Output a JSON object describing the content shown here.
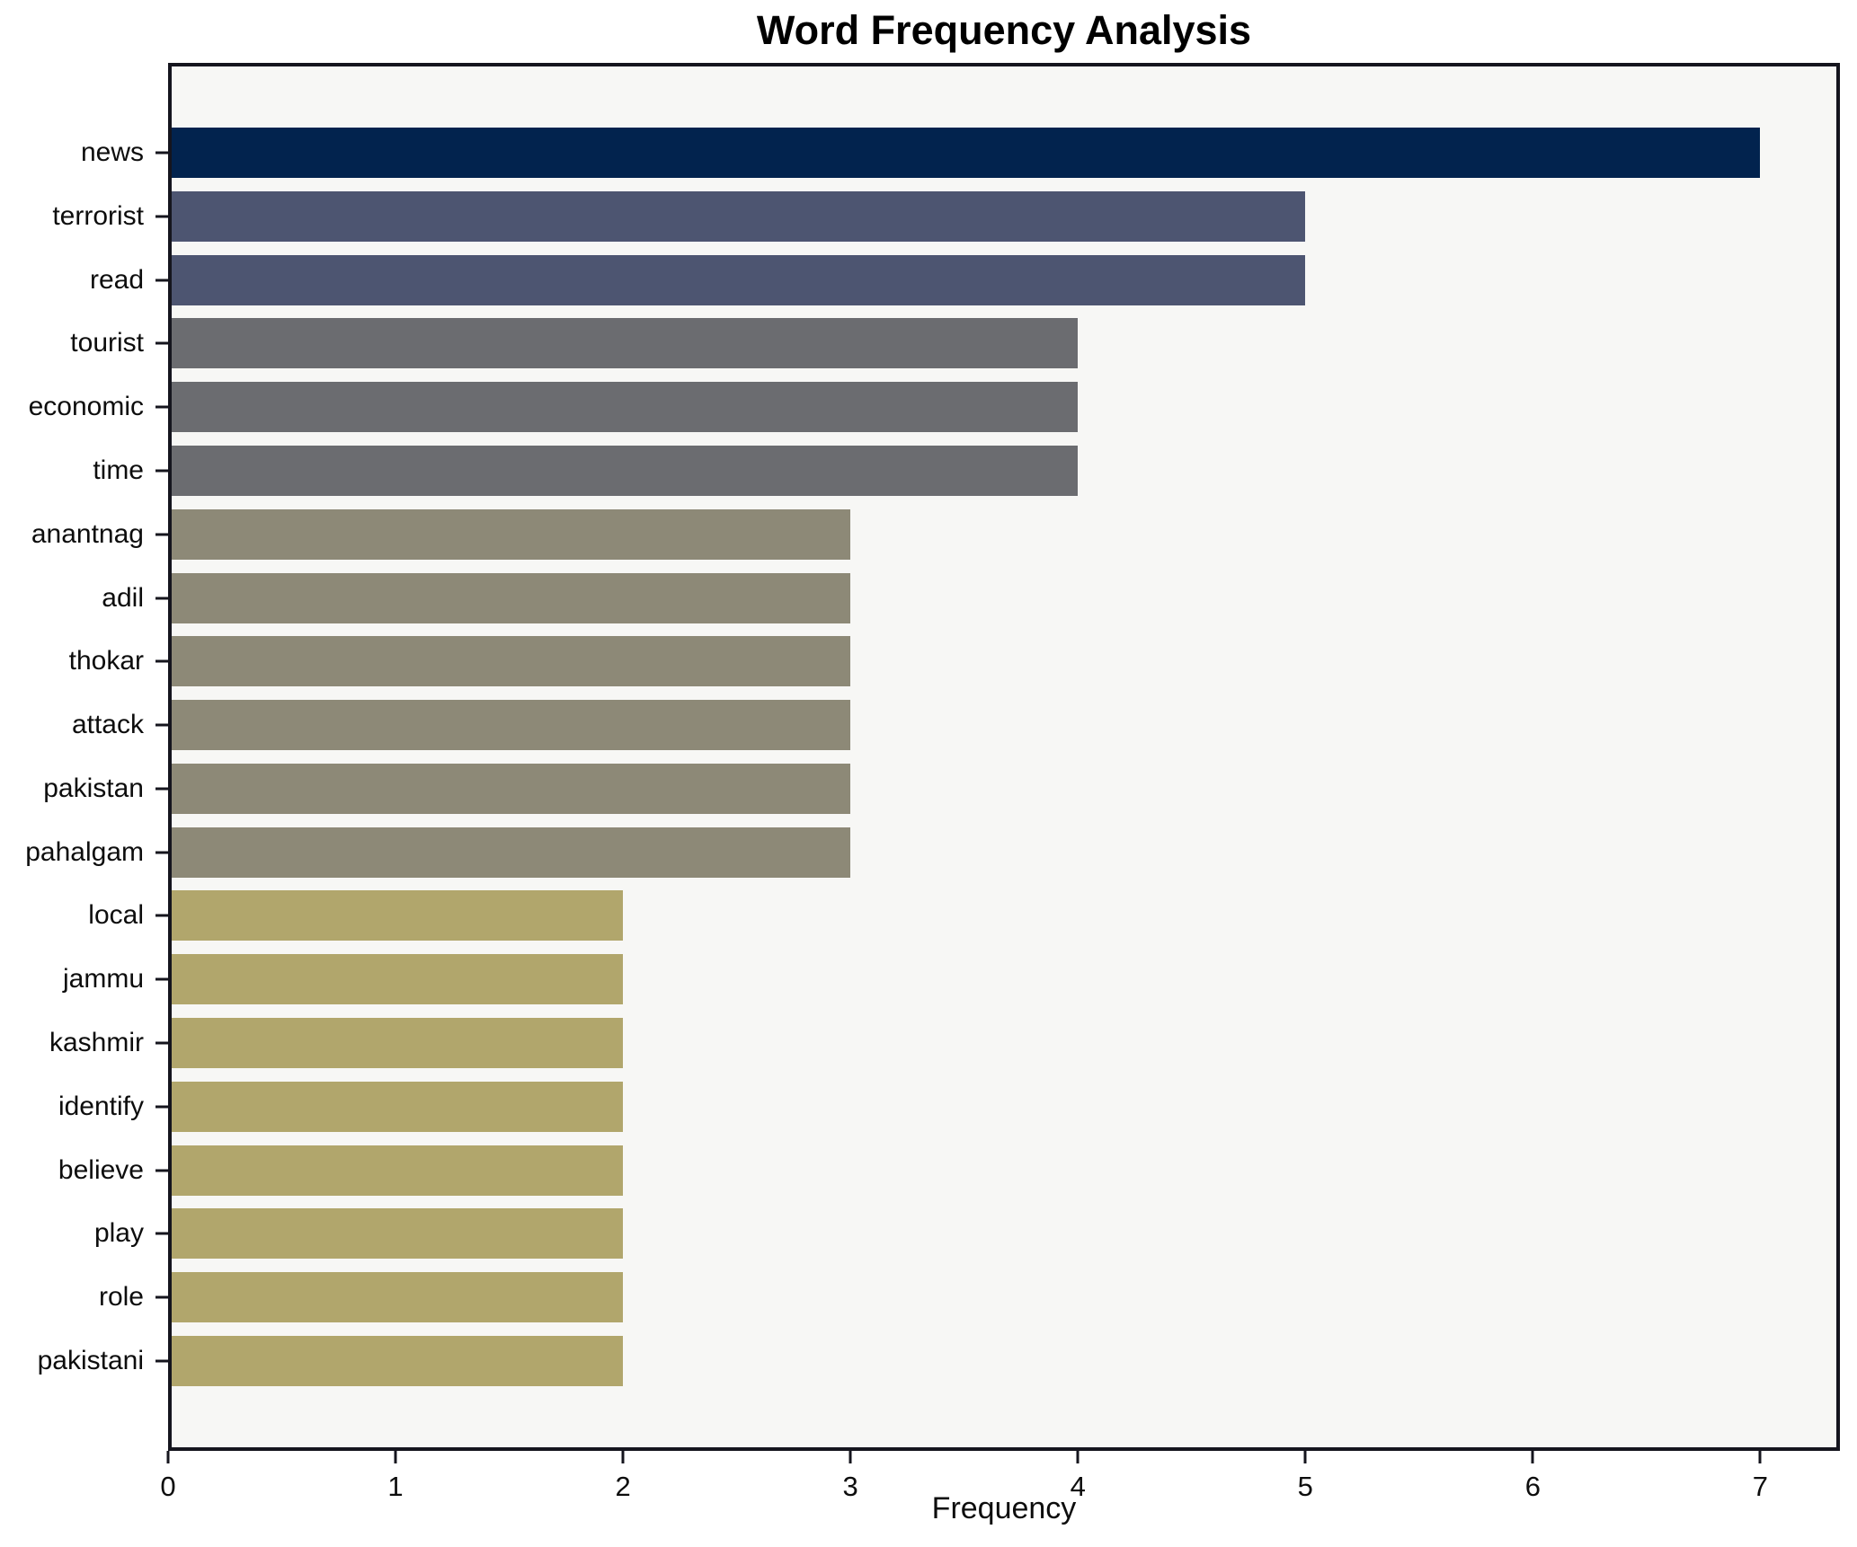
{
  "title": "Word Frequency Analysis",
  "axis": {
    "xlabel": "Frequency",
    "x_ticks": [
      "0",
      "1",
      "2",
      "3",
      "4",
      "5",
      "6",
      "7"
    ],
    "x_tick_values": [
      0,
      1,
      2,
      3,
      4,
      5,
      6,
      7
    ]
  },
  "colors": {
    "plot_background": "#f7f7f5",
    "figure_background": "#ffffff",
    "frame": "#15151e",
    "tick": "#15151e",
    "text": "#0d0d0d",
    "value_color_map": {
      "7": "#02234e",
      "5": "#4d5571",
      "4": "#6b6c70",
      "3": "#8d8977",
      "2": "#b1a66c"
    }
  },
  "chart_data": {
    "type": "bar",
    "orientation": "horizontal",
    "title": "Word Frequency Analysis",
    "xlabel": "Frequency",
    "ylabel": "",
    "xlim": [
      0,
      7.35
    ],
    "grid": false,
    "legend_position": "none",
    "categories": [
      "news",
      "terrorist",
      "read",
      "tourist",
      "economic",
      "time",
      "anantnag",
      "adil",
      "thokar",
      "attack",
      "pakistan",
      "pahalgam",
      "local",
      "jammu",
      "kashmir",
      "identify",
      "believe",
      "play",
      "role",
      "pakistani"
    ],
    "values": [
      7,
      5,
      5,
      4,
      4,
      4,
      3,
      3,
      3,
      3,
      3,
      3,
      2,
      2,
      2,
      2,
      2,
      2,
      2,
      2
    ],
    "bar_colors": [
      "#02234e",
      "#4d5571",
      "#4d5571",
      "#6b6c70",
      "#6b6c70",
      "#6b6c70",
      "#8d8977",
      "#8d8977",
      "#8d8977",
      "#8d8977",
      "#8d8977",
      "#8d8977",
      "#b1a66c",
      "#b1a66c",
      "#b1a66c",
      "#b1a66c",
      "#b1a66c",
      "#b1a66c",
      "#b1a66c",
      "#b1a66c"
    ]
  }
}
